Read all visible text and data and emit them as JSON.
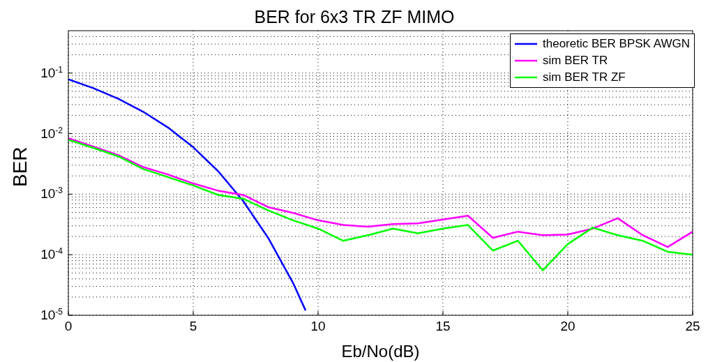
{
  "chart_data": {
    "type": "line",
    "title": "BER for 6x3 TR ZF MIMO",
    "xlabel": "Eb/No(dB)",
    "ylabel": "BER",
    "log": "y",
    "grid": true,
    "legend": "top right",
    "marker": "none",
    "line_style": "solid",
    "xlim": [
      0,
      25
    ],
    "xticks": [
      0,
      5,
      10,
      15,
      20,
      25
    ],
    "ylim": [
      1e-05,
      0.5
    ],
    "yticks": [
      {
        "value": 1e-05,
        "label": "10$^{-5}$"
      },
      {
        "value": 0.0001,
        "label": "10$^{-4}$"
      },
      {
        "value": 0.001,
        "label": "10$^{-3}$"
      },
      {
        "value": 0.01,
        "label": "10$^{-2}$"
      },
      {
        "value": 0.1,
        "label": "10$^{-1}$"
      }
    ],
    "series": [
      {
        "name": "theoretic BER BPSK AWGN",
        "color": "#0000ff",
        "x": [
          0,
          1,
          2,
          3,
          4,
          5,
          6,
          7,
          8,
          9,
          9.5
        ],
        "values": [
          0.0786,
          0.0563,
          0.0375,
          0.0229,
          0.0125,
          0.00595,
          0.00239,
          0.00077,
          0.00019,
          3.4e-05,
          1.2e-05
        ]
      },
      {
        "name": "sim BER TR",
        "color": "#ff00ff",
        "x": [
          0,
          1,
          2,
          3,
          4,
          5,
          6,
          7,
          8,
          9,
          10,
          11,
          12,
          13,
          14,
          15,
          16,
          17,
          18,
          19,
          20,
          21,
          22,
          23,
          24,
          25
        ],
        "values": [
          0.0084,
          0.0061,
          0.0044,
          0.0028,
          0.0021,
          0.0015,
          0.00114,
          0.00097,
          0.00061,
          0.00049,
          0.00037,
          0.00031,
          0.00029,
          0.00032,
          0.00033,
          0.00038,
          0.00044,
          0.00019,
          0.00024,
          0.00021,
          0.000215,
          0.00027,
          0.0004,
          0.00021,
          0.000134,
          0.00024
        ]
      },
      {
        "name": "sim BER TR ZF",
        "color": "#00ff00",
        "x": [
          0,
          1,
          2,
          3,
          4,
          5,
          6,
          7,
          8,
          9,
          10,
          11,
          12,
          13,
          14,
          15,
          16,
          17,
          18,
          19,
          20,
          21,
          22,
          23,
          24,
          25
        ],
        "values": [
          0.0079,
          0.0058,
          0.0042,
          0.0026,
          0.0019,
          0.00139,
          0.00097,
          0.00084,
          0.00054,
          0.00037,
          0.00027,
          0.00017,
          0.00021,
          0.00027,
          0.000225,
          0.00027,
          0.00031,
          0.000117,
          0.00017,
          5.5e-05,
          0.00015,
          0.00028,
          0.00021,
          0.00017,
          0.000112,
          0.0001
        ]
      }
    ]
  }
}
